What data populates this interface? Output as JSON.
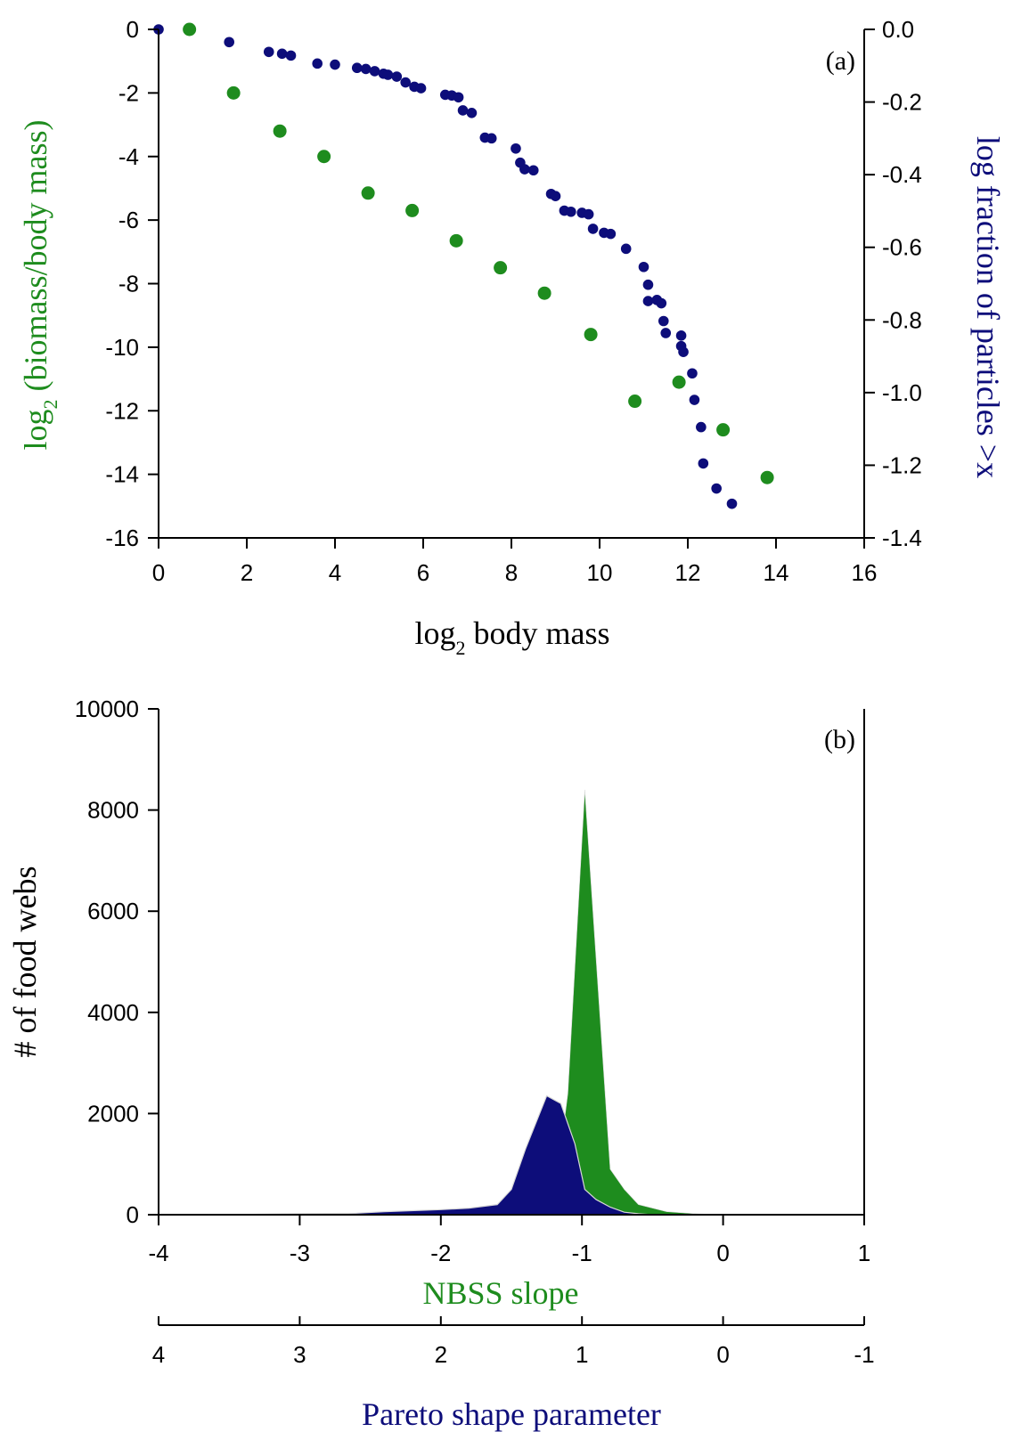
{
  "chart_data": [
    {
      "panel": "(a)",
      "type": "scatter",
      "xlabel": "log",
      "xlabel_sub": "2",
      "xlabel_rest": " body mass",
      "ylabel_left": "log",
      "ylabel_left_sub": "2",
      "ylabel_left_rest": " (biomass/body mass)",
      "ylabel_right": "log fraction of particles >x",
      "xlim": [
        0,
        16
      ],
      "ylim_left": [
        -16,
        0
      ],
      "ylim_right": [
        -1.4,
        0.0
      ],
      "x_ticks": [
        "0",
        "2",
        "4",
        "6",
        "8",
        "10",
        "12",
        "14",
        "16"
      ],
      "y_left_ticks": [
        "0",
        "-2",
        "-4",
        "-6",
        "-8",
        "-10",
        "-12",
        "-14",
        "-16"
      ],
      "y_right_ticks": [
        "0.0",
        "-0.2",
        "-0.4",
        "-0.6",
        "-0.8",
        "-1.0",
        "-1.2",
        "-1.4"
      ],
      "grid": false,
      "colors": {
        "green": "#1e8c1e",
        "blue": "#0d0d7a"
      },
      "series": [
        {
          "axis": "left",
          "color": "#1e8c1e",
          "points": [
            [
              0.7,
              0.0
            ],
            [
              1.7,
              -2.0
            ],
            [
              2.75,
              -3.2
            ],
            [
              3.75,
              -4.0
            ],
            [
              4.75,
              -5.15
            ],
            [
              5.75,
              -5.7
            ],
            [
              6.75,
              -6.65
            ],
            [
              7.75,
              -7.5
            ],
            [
              8.75,
              -8.3
            ],
            [
              9.8,
              -9.6
            ],
            [
              10.8,
              -11.7
            ],
            [
              11.8,
              -11.1
            ],
            [
              12.8,
              -12.6
            ],
            [
              13.8,
              -14.1
            ]
          ]
        },
        {
          "axis": "right",
          "color": "#0d0d7a",
          "points": [
            [
              0.0,
              0.0
            ],
            [
              1.6,
              -0.035
            ],
            [
              2.5,
              -0.062
            ],
            [
              2.8,
              -0.067
            ],
            [
              3.0,
              -0.072
            ],
            [
              3.6,
              -0.094
            ],
            [
              4.0,
              -0.097
            ],
            [
              4.5,
              -0.106
            ],
            [
              4.7,
              -0.109
            ],
            [
              4.9,
              -0.115
            ],
            [
              5.1,
              -0.122
            ],
            [
              5.2,
              -0.125
            ],
            [
              5.4,
              -0.13
            ],
            [
              5.6,
              -0.146
            ],
            [
              5.8,
              -0.158
            ],
            [
              5.95,
              -0.162
            ],
            [
              6.5,
              -0.18
            ],
            [
              6.65,
              -0.182
            ],
            [
              6.8,
              -0.187
            ],
            [
              6.9,
              -0.223
            ],
            [
              7.1,
              -0.23
            ],
            [
              7.4,
              -0.298
            ],
            [
              7.55,
              -0.3
            ],
            [
              8.1,
              -0.328
            ],
            [
              8.2,
              -0.367
            ],
            [
              8.3,
              -0.385
            ],
            [
              8.5,
              -0.388
            ],
            [
              8.9,
              -0.453
            ],
            [
              9.0,
              -0.459
            ],
            [
              9.2,
              -0.499
            ],
            [
              9.35,
              -0.502
            ],
            [
              9.6,
              -0.505
            ],
            [
              9.75,
              -0.509
            ],
            [
              9.85,
              -0.549
            ],
            [
              10.1,
              -0.56
            ],
            [
              10.25,
              -0.563
            ],
            [
              10.6,
              -0.604
            ],
            [
              11.0,
              -0.654
            ],
            [
              11.1,
              -0.703
            ],
            [
              11.1,
              -0.748
            ],
            [
              11.3,
              -0.745
            ],
            [
              11.4,
              -0.754
            ],
            [
              11.45,
              -0.803
            ],
            [
              11.5,
              -0.836
            ],
            [
              11.85,
              -0.843
            ],
            [
              11.85,
              -0.872
            ],
            [
              11.9,
              -0.888
            ],
            [
              12.1,
              -0.947
            ],
            [
              12.15,
              -1.02
            ],
            [
              12.3,
              -1.095
            ],
            [
              12.35,
              -1.195
            ],
            [
              12.65,
              -1.264
            ],
            [
              13.0,
              -1.306
            ]
          ]
        }
      ]
    },
    {
      "panel": "(b)",
      "type": "area",
      "ylabel": "# of food webs",
      "xlabel_top": "NBSS slope",
      "xlabel_bottom": "Pareto shape parameter",
      "xlim": [
        -4,
        1
      ],
      "ylim": [
        0,
        10000
      ],
      "x_ticks": [
        "-4",
        "-3",
        "-2",
        "-1",
        "0",
        "1"
      ],
      "x2_ticks": [
        "4",
        "3",
        "2",
        "1",
        "0",
        "-1"
      ],
      "y_ticks": [
        "0",
        "2000",
        "4000",
        "6000",
        "8000",
        "10000"
      ],
      "grid": false,
      "series": [
        {
          "label": "NBSS slope",
          "color": "#1e8c1e",
          "x": [
            -4.0,
            -3.0,
            -2.5,
            -2.0,
            -1.5,
            -1.2,
            -1.1,
            -0.98,
            -0.8,
            -0.7,
            -0.6,
            -0.4,
            -0.2,
            0.0,
            0.5,
            1.0
          ],
          "y": [
            0,
            0,
            0,
            0,
            0,
            200,
            2400,
            8400,
            900,
            500,
            200,
            60,
            20,
            0,
            0,
            0
          ]
        },
        {
          "label": "Pareto shape parameter",
          "color": "#0d0d7a",
          "x": [
            -4.0,
            -3.5,
            -3.0,
            -2.6,
            -2.4,
            -2.0,
            -1.8,
            -1.6,
            -1.5,
            -1.4,
            -1.25,
            -1.15,
            -1.05,
            -0.98,
            -0.9,
            -0.8,
            -0.7,
            -0.6,
            -0.5,
            -0.3,
            0.0,
            0.5,
            1.0
          ],
          "y": [
            0,
            0,
            20,
            30,
            60,
            100,
            130,
            200,
            500,
            1300,
            2350,
            2200,
            1400,
            500,
            300,
            150,
            50,
            20,
            0,
            0,
            0,
            0,
            0
          ]
        }
      ]
    }
  ]
}
